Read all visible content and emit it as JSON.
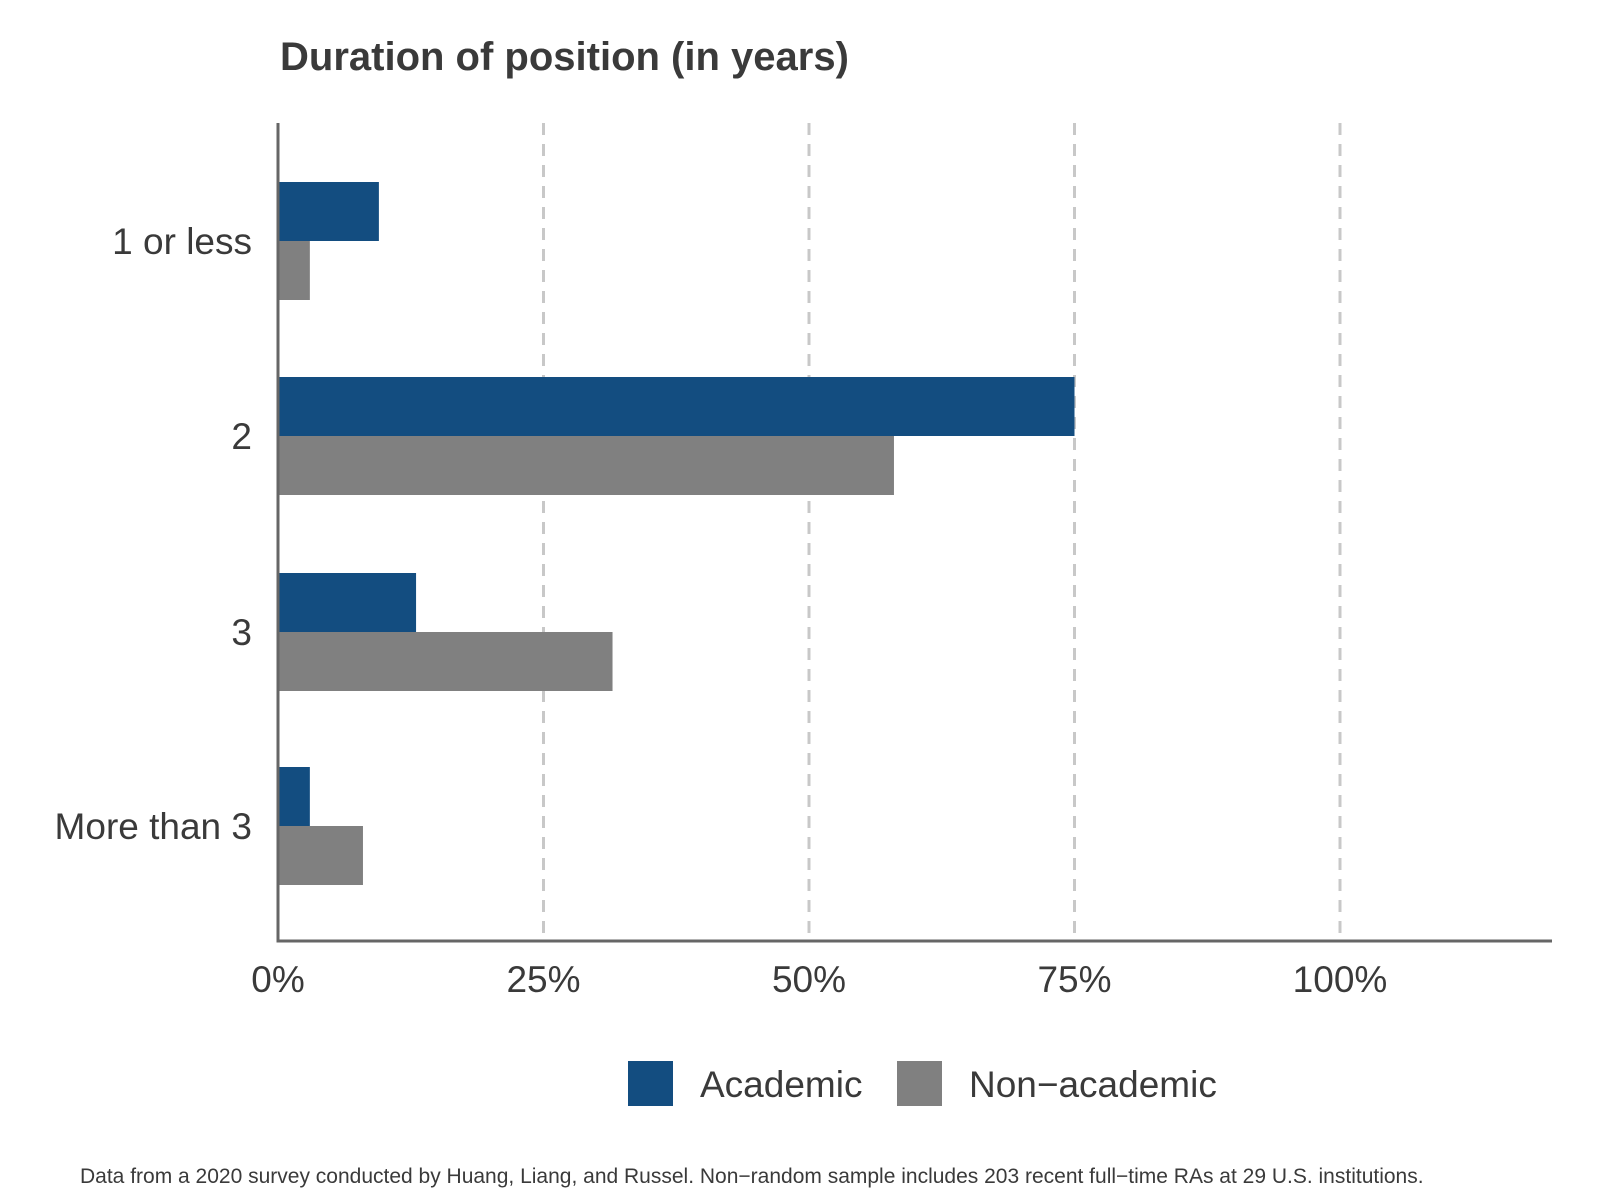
{
  "chart_data": {
    "type": "bar",
    "orientation": "horizontal",
    "title": "Duration of position (in years)",
    "categories": [
      "1 or less",
      "2",
      "3",
      "More than 3"
    ],
    "series": [
      {
        "name": "Academic",
        "color": "#134d80",
        "values": [
          9.5,
          75,
          13,
          3
        ]
      },
      {
        "name": "Non−academic",
        "color": "#808080",
        "values": [
          3,
          58,
          31.5,
          8
        ]
      }
    ],
    "xticks": [
      "0%",
      "25%",
      "50%",
      "75%",
      "100%"
    ],
    "xtick_values": [
      0,
      25,
      50,
      75,
      100
    ],
    "xlim": [
      0,
      120
    ],
    "grid": "vertical dashed",
    "legend_position": "bottom",
    "caption": "Data from a 2020 survey conducted by Huang, Liang, and Russel. Non−random sample includes 203 recent full−time RAs at 29 U.S. institutions."
  }
}
